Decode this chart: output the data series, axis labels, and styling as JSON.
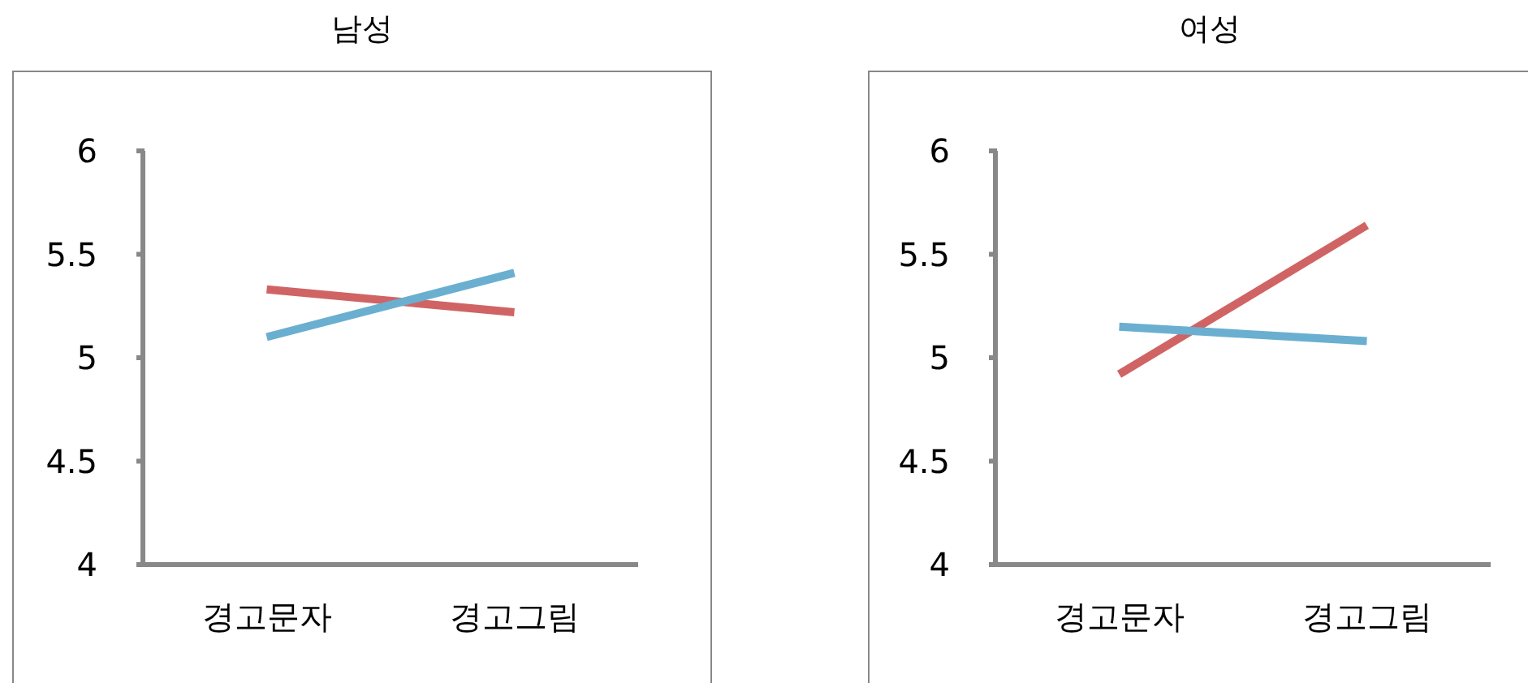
{
  "chart_data": [
    {
      "type": "line",
      "title": "남성",
      "categories": [
        "경고문자",
        "경고그림"
      ],
      "ylim": [
        4,
        6
      ],
      "yticks": [
        4,
        4.5,
        5,
        5.5,
        6
      ],
      "grid": false,
      "marker": "none",
      "series": [
        {
          "color": "#d06464",
          "values": [
            5.33,
            5.22
          ]
        },
        {
          "color": "#6aafd0",
          "values": [
            5.1,
            5.41
          ]
        }
      ]
    },
    {
      "type": "line",
      "title": "여성",
      "categories": [
        "경고문자",
        "경고그림"
      ],
      "ylim": [
        4,
        6
      ],
      "yticks": [
        4,
        4.5,
        5,
        5.5,
        6
      ],
      "grid": false,
      "marker": "none",
      "series": [
        {
          "color": "#d06464",
          "values": [
            4.92,
            5.64
          ]
        },
        {
          "color": "#6aafd0",
          "values": [
            5.15,
            5.08
          ]
        }
      ]
    }
  ]
}
